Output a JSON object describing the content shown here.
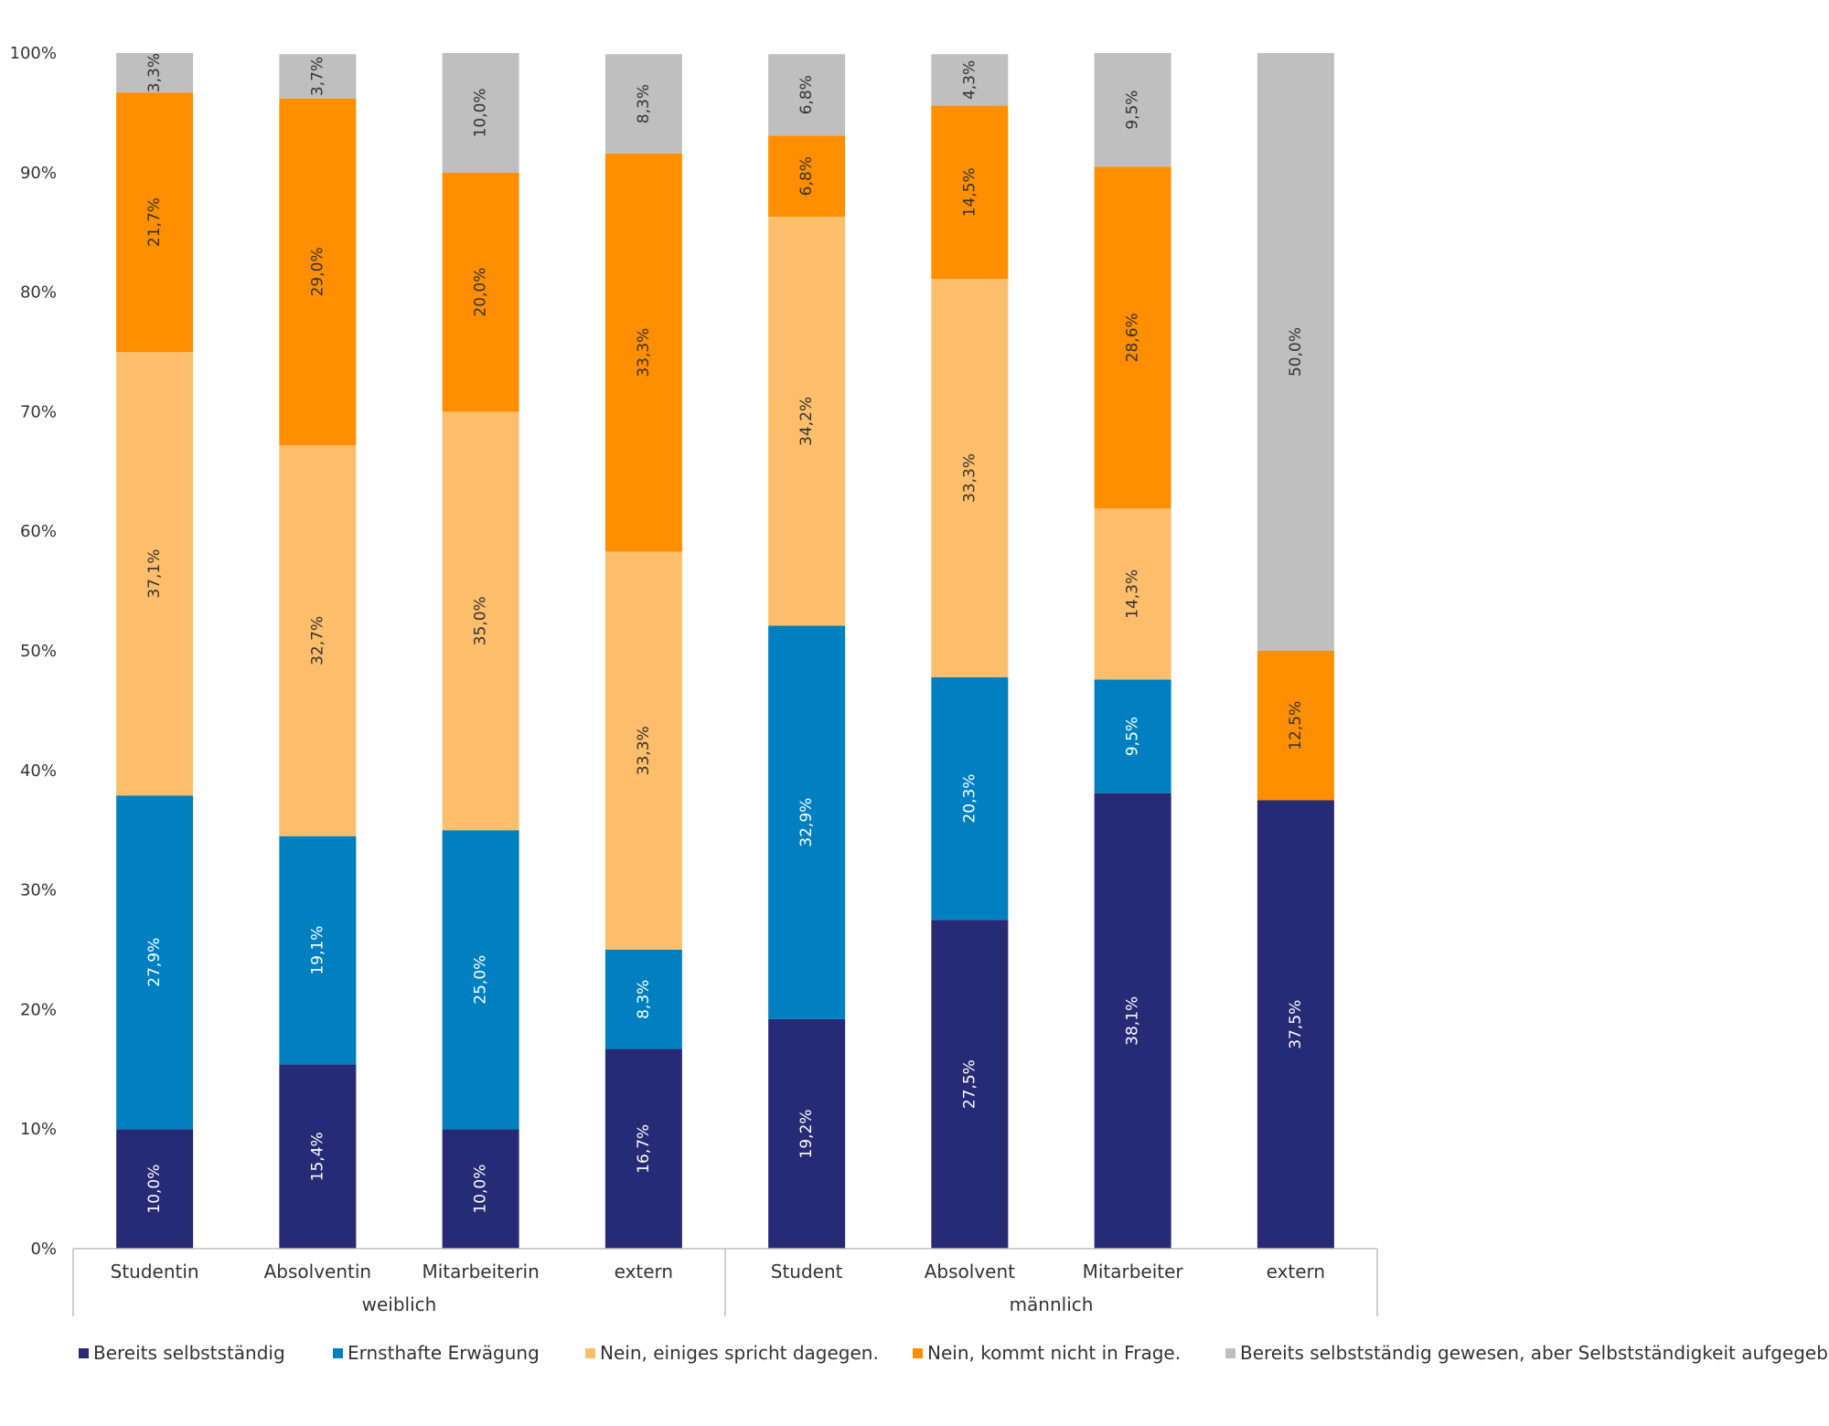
{
  "chart_data": {
    "type": "bar",
    "stacked": true,
    "percent": true,
    "title": "",
    "xlabel": "",
    "ylabel": "",
    "ylim": [
      0,
      100
    ],
    "y_ticks": [
      "0%",
      "10%",
      "20%",
      "30%",
      "40%",
      "50%",
      "60%",
      "70%",
      "80%",
      "90%",
      "100%"
    ],
    "categories": [
      "Studentin",
      "Absolventin",
      "Mitarbeiterin",
      "extern",
      "Student",
      "Absolvent",
      "Mitarbeiter",
      "extern"
    ],
    "groups": [
      {
        "label": "weiblich",
        "start": 0,
        "end": 3
      },
      {
        "label": "männlich",
        "start": 4,
        "end": 7
      }
    ],
    "series": [
      {
        "name": "Bereits selbstständig",
        "color": "#272A75",
        "label_color": "#ffffff",
        "values": [
          10.0,
          15.4,
          10.0,
          16.7,
          19.2,
          27.5,
          38.1,
          37.5
        ],
        "labels": [
          "10,0%",
          "15,4%",
          "10,0%",
          "16,7%",
          "19,2%",
          "27,5%",
          "38,1%",
          "37,5%"
        ]
      },
      {
        "name": "Ernsthafte Erwägung",
        "color": "#0080C0",
        "label_color": "#ffffff",
        "values": [
          27.9,
          19.1,
          25.0,
          8.3,
          32.9,
          20.3,
          9.5,
          0
        ],
        "labels": [
          "27,9%",
          "19,1%",
          "25,0%",
          "8,3%",
          "32,9%",
          "20,3%",
          "9,5%",
          ""
        ]
      },
      {
        "name": "Nein, einiges spricht dagegen.",
        "color": "#FDBE6B",
        "label_color": "#333333",
        "values": [
          37.1,
          32.7,
          35.0,
          33.3,
          34.2,
          33.3,
          14.3,
          0
        ],
        "labels": [
          "37,1%",
          "32,7%",
          "35,0%",
          "33,3%",
          "34,2%",
          "33,3%",
          "14,3%",
          ""
        ]
      },
      {
        "name": "Nein, kommt nicht in Frage.",
        "color": "#FF8F00",
        "label_color": "#333333",
        "values": [
          21.7,
          29.0,
          20.0,
          33.3,
          6.8,
          14.5,
          28.6,
          12.5
        ],
        "labels": [
          "21,7%",
          "29,0%",
          "20,0%",
          "33,3%",
          "6,8%",
          "14,5%",
          "28,6%",
          "12,5%"
        ]
      },
      {
        "name": "Bereits selbstständig gewesen, aber Selbstständigkeit aufgegeben.",
        "color": "#BFBFBF",
        "label_color": "#333333",
        "values": [
          3.3,
          3.7,
          10.0,
          8.3,
          6.8,
          4.3,
          9.5,
          50.0
        ],
        "labels": [
          "3,3%",
          "3,7%",
          "10,0%",
          "8,3%",
          "6,8%",
          "4,3%",
          "9,5%",
          "50,0%"
        ]
      }
    ],
    "legend": "bottom"
  }
}
